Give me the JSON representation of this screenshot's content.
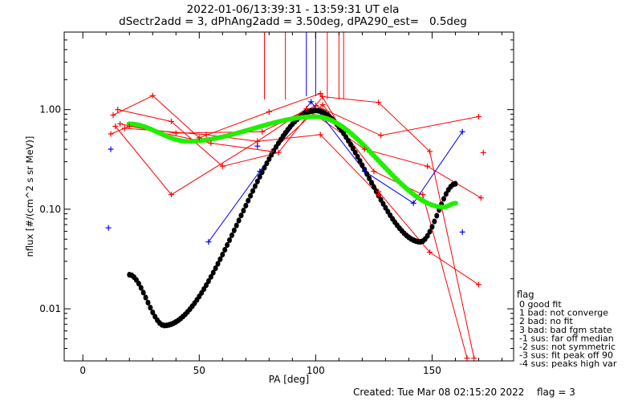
{
  "chart_data": {
    "type": "scatter",
    "title": "2022-01-06/13:39:31 - 13:59:31 UT ela",
    "subtitle": "dSectr2add = 3, dPhAng2add = 3.50deg, dPA290_est=   0.5deg",
    "xlabel": "PA [deg]",
    "ylabel": "nflux [#/(cm^2 s sr MeV)]",
    "xlim": [
      -8,
      185
    ],
    "ylim": [
      0.003,
      6.0
    ],
    "yscale": "log",
    "xticks": [
      "0",
      "50",
      "100",
      "150"
    ],
    "yticks": [
      "0.01",
      "0.10",
      "1.00"
    ],
    "red_lines": [
      [
        [
          12,
          0.57
        ],
        [
          20,
          0.68
        ],
        [
          40,
          0.58
        ],
        [
          77,
          0.6
        ],
        [
          100,
          1.1
        ],
        [
          128,
          0.55
        ],
        [
          170,
          0.85
        ]
      ],
      [
        [
          13,
          0.88
        ],
        [
          30,
          1.38
        ],
        [
          50,
          0.52
        ],
        [
          80,
          0.95
        ],
        [
          102,
          1.45
        ],
        [
          127,
          0.15
        ],
        [
          149,
          0.037
        ],
        [
          170,
          0.0175
        ]
      ],
      [
        [
          14,
          0.68
        ],
        [
          38,
          0.14
        ],
        [
          75,
          0.48
        ],
        [
          96,
          1.02
        ],
        [
          121,
          0.4
        ],
        [
          148,
          0.27
        ],
        [
          171,
          0.13
        ]
      ],
      [
        [
          15,
          1.0
        ],
        [
          38,
          0.76
        ],
        [
          60,
          0.27
        ],
        [
          84,
          0.37
        ],
        [
          103,
          1.35
        ],
        [
          127,
          1.18
        ],
        [
          149,
          0.38
        ],
        [
          168,
          0.0032
        ]
      ],
      [
        [
          16,
          0.72
        ],
        [
          55,
          0.46
        ],
        [
          81,
          0.38
        ],
        [
          103,
          1.12
        ],
        [
          125,
          0.24
        ],
        [
          146,
          0.14
        ],
        [
          165,
          0.0032
        ]
      ],
      [
        [
          18,
          0.65
        ],
        [
          53,
          0.56
        ],
        [
          75,
          0.48
        ],
        [
          102,
          0.56
        ],
        [
          127,
          0.14
        ]
      ]
    ],
    "red_points": [
      [
        172,
        0.37
      ]
    ],
    "red_spikes": [
      78,
      87,
      105,
      110,
      112
    ],
    "blue_line": [
      [
        54,
        0.047
      ],
      [
        76,
        0.24
      ],
      [
        98,
        1.2
      ],
      [
        121,
        0.24
      ],
      [
        142,
        0.115
      ],
      [
        163,
        0.6
      ]
    ],
    "blue_points": [
      [
        11,
        0.065
      ],
      [
        12,
        0.4
      ],
      [
        75,
        0.43
      ],
      [
        163,
        0.059
      ]
    ],
    "blue_spikes": [
      96,
      100
    ],
    "black_fit": {
      "x_range": [
        20,
        160
      ],
      "peak_x": 100,
      "peak_y": 0.98,
      "min1_x": 35,
      "min1_y": 0.0068,
      "min2_x": 145,
      "min2_y": 0.047,
      "end_y": 0.18
    },
    "green_fit": {
      "x_range": [
        20,
        160
      ],
      "start_y": 0.72,
      "min_x": 45,
      "min_y": 0.48,
      "peak_x": 100,
      "peak_y": 0.85,
      "end_x": 155,
      "end_y": 0.105,
      "last_y": 0.115
    },
    "colors": {
      "red": "#ff0000",
      "blue": "#0000ff",
      "black": "#000000",
      "green": "#22ee00"
    }
  },
  "legend": {
    "title": "flag",
    "entries": [
      " 0 good fit",
      " 1 bad: not converge",
      " 2 bad: no fit",
      " 3 bad: bad fgm state",
      "-1 sus: far off median",
      "-2 sus: not symmetric",
      "-3 sus: fit peak off 90",
      "-4 sus: peaks high var"
    ]
  },
  "footer": {
    "created": "Created: Tue Mar 08 02:15:20 2022",
    "flag": "flag = 3"
  }
}
